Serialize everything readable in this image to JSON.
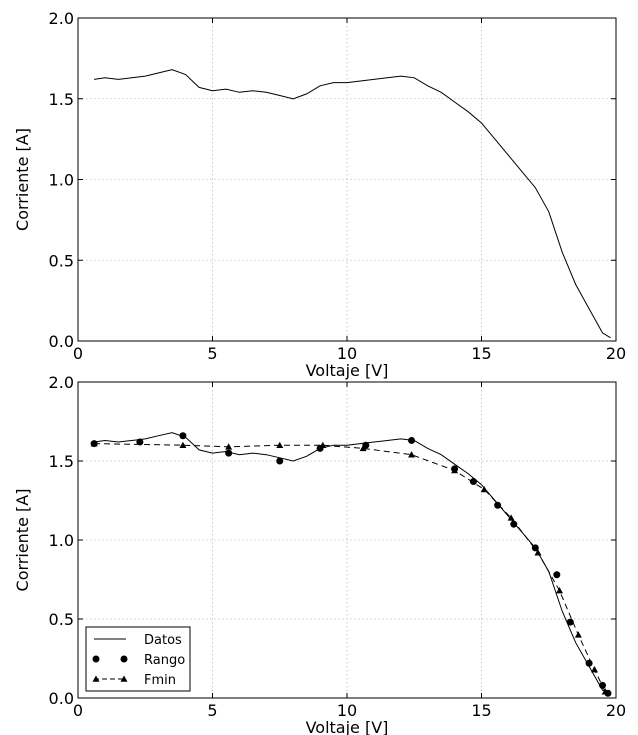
{
  "chart_data": [
    {
      "type": "line",
      "xlabel": "Voltaje [V]",
      "ylabel": "Corriente [A]",
      "xlim": [
        0,
        20
      ],
      "ylim": [
        0,
        2.0
      ],
      "x_ticks": [
        "0",
        "5",
        "10",
        "15",
        "20"
      ],
      "y_ticks": [
        "0.0",
        "0.5",
        "1.0",
        "1.5",
        "2.0"
      ],
      "grid": true,
      "legend": null,
      "series": [
        {
          "name": "",
          "style": "solid",
          "color": "#000000",
          "points": [
            [
              0.6,
              1.62
            ],
            [
              1.0,
              1.63
            ],
            [
              1.5,
              1.62
            ],
            [
              2.0,
              1.63
            ],
            [
              2.5,
              1.64
            ],
            [
              3.0,
              1.66
            ],
            [
              3.5,
              1.68
            ],
            [
              4.0,
              1.65
            ],
            [
              4.5,
              1.57
            ],
            [
              5.0,
              1.55
            ],
            [
              5.5,
              1.56
            ],
            [
              6.0,
              1.54
            ],
            [
              6.5,
              1.55
            ],
            [
              7.0,
              1.54
            ],
            [
              7.5,
              1.52
            ],
            [
              8.0,
              1.5
            ],
            [
              8.5,
              1.53
            ],
            [
              9.0,
              1.58
            ],
            [
              9.5,
              1.6
            ],
            [
              10.0,
              1.6
            ],
            [
              10.5,
              1.61
            ],
            [
              11.0,
              1.62
            ],
            [
              11.5,
              1.63
            ],
            [
              12.0,
              1.64
            ],
            [
              12.5,
              1.63
            ],
            [
              13.0,
              1.58
            ],
            [
              13.5,
              1.54
            ],
            [
              14.0,
              1.48
            ],
            [
              14.5,
              1.42
            ],
            [
              15.0,
              1.35
            ],
            [
              15.5,
              1.25
            ],
            [
              16.0,
              1.15
            ],
            [
              16.5,
              1.05
            ],
            [
              17.0,
              0.95
            ],
            [
              17.5,
              0.8
            ],
            [
              18.0,
              0.55
            ],
            [
              18.5,
              0.35
            ],
            [
              19.0,
              0.2
            ],
            [
              19.5,
              0.05
            ],
            [
              19.8,
              0.02
            ]
          ]
        }
      ]
    },
    {
      "type": "line",
      "xlabel": "Voltaje [V]",
      "ylabel": "Corriente [A]",
      "xlim": [
        0,
        20
      ],
      "ylim": [
        0,
        2.0
      ],
      "x_ticks": [
        "0",
        "5",
        "10",
        "15",
        "20"
      ],
      "y_ticks": [
        "0.0",
        "0.5",
        "1.0",
        "1.5",
        "2.0"
      ],
      "grid": true,
      "legend": "bottom-left",
      "series": [
        {
          "name": "Datos",
          "style": "solid",
          "color": "#000000",
          "points": [
            [
              0.6,
              1.62
            ],
            [
              1.0,
              1.63
            ],
            [
              1.5,
              1.62
            ],
            [
              2.0,
              1.63
            ],
            [
              2.5,
              1.64
            ],
            [
              3.0,
              1.66
            ],
            [
              3.5,
              1.68
            ],
            [
              4.0,
              1.65
            ],
            [
              4.5,
              1.57
            ],
            [
              5.0,
              1.55
            ],
            [
              5.5,
              1.56
            ],
            [
              6.0,
              1.54
            ],
            [
              6.5,
              1.55
            ],
            [
              7.0,
              1.54
            ],
            [
              7.5,
              1.52
            ],
            [
              8.0,
              1.5
            ],
            [
              8.5,
              1.53
            ],
            [
              9.0,
              1.58
            ],
            [
              9.5,
              1.6
            ],
            [
              10.0,
              1.6
            ],
            [
              10.5,
              1.61
            ],
            [
              11.0,
              1.62
            ],
            [
              11.5,
              1.63
            ],
            [
              12.0,
              1.64
            ],
            [
              12.5,
              1.63
            ],
            [
              13.0,
              1.58
            ],
            [
              13.5,
              1.54
            ],
            [
              14.0,
              1.48
            ],
            [
              14.5,
              1.42
            ],
            [
              15.0,
              1.35
            ],
            [
              15.5,
              1.25
            ],
            [
              16.0,
              1.15
            ],
            [
              16.5,
              1.05
            ],
            [
              17.0,
              0.95
            ],
            [
              17.5,
              0.8
            ],
            [
              18.0,
              0.55
            ],
            [
              18.5,
              0.35
            ],
            [
              19.0,
              0.2
            ],
            [
              19.5,
              0.05
            ],
            [
              19.8,
              0.02
            ]
          ]
        },
        {
          "name": "Rango",
          "style": "markers-circle",
          "color": "#000000",
          "points": [
            [
              0.6,
              1.61
            ],
            [
              2.3,
              1.62
            ],
            [
              3.9,
              1.66
            ],
            [
              5.6,
              1.55
            ],
            [
              7.5,
              1.5
            ],
            [
              9.0,
              1.58
            ],
            [
              10.7,
              1.6
            ],
            [
              12.4,
              1.63
            ],
            [
              14.0,
              1.45
            ],
            [
              14.7,
              1.37
            ],
            [
              15.6,
              1.22
            ],
            [
              16.2,
              1.1
            ],
            [
              17.0,
              0.95
            ],
            [
              17.8,
              0.78
            ],
            [
              18.3,
              0.48
            ],
            [
              19.0,
              0.22
            ],
            [
              19.5,
              0.08
            ],
            [
              19.7,
              0.03
            ]
          ]
        },
        {
          "name": "Fmin",
          "style": "dashed-triangles",
          "color": "#000000",
          "points": [
            [
              0.6,
              1.61
            ],
            [
              3.9,
              1.6
            ],
            [
              5.6,
              1.59
            ],
            [
              7.5,
              1.6
            ],
            [
              9.1,
              1.6
            ],
            [
              10.6,
              1.58
            ],
            [
              12.4,
              1.54
            ],
            [
              14.0,
              1.44
            ],
            [
              15.1,
              1.32
            ],
            [
              16.1,
              1.14
            ],
            [
              17.1,
              0.92
            ],
            [
              17.9,
              0.68
            ],
            [
              18.6,
              0.4
            ],
            [
              19.2,
              0.18
            ],
            [
              19.6,
              0.04
            ]
          ]
        }
      ]
    }
  ]
}
